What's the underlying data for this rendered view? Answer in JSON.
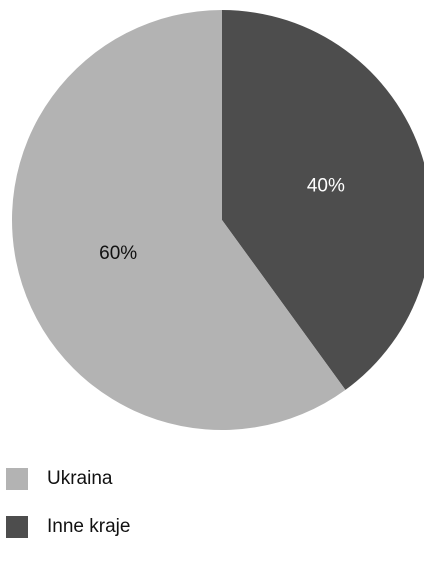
{
  "chart_data": {
    "type": "pie",
    "title": "",
    "slices": [
      {
        "label": "Ukraina",
        "value": 60,
        "display": "60%",
        "color": "#b3b3b3",
        "label_color": "#111111"
      },
      {
        "label": "Inne kraje",
        "value": 40,
        "display": "40%",
        "color": "#4d4d4d",
        "label_color": "#ffffff"
      }
    ],
    "legend_position": "bottom-left"
  }
}
